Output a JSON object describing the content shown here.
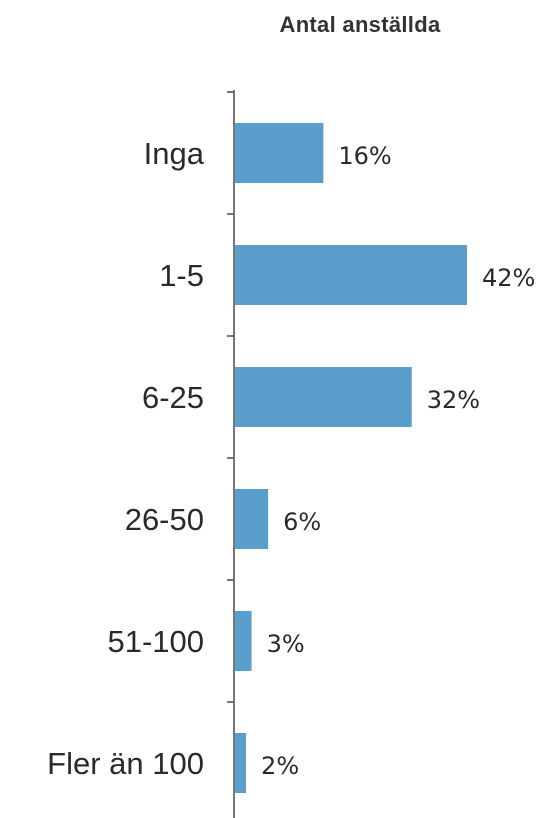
{
  "chart_data": {
    "type": "bar",
    "orientation": "horizontal",
    "title": "Antal anställda",
    "categories": [
      "Inga",
      "1-5",
      "6-25",
      "26-50",
      "51-100",
      "Fler än 100"
    ],
    "values": [
      16,
      42,
      32,
      6,
      3,
      2
    ],
    "value_labels": [
      "16%",
      "42%",
      "32%",
      "6%",
      "3%",
      "2%"
    ],
    "unit": "%",
    "xlim": [
      0,
      42
    ],
    "grid": false,
    "legend": "none",
    "bar_color": "#5a9fcb",
    "axis_color": "#555555",
    "text_color": "#2a2a2a"
  }
}
